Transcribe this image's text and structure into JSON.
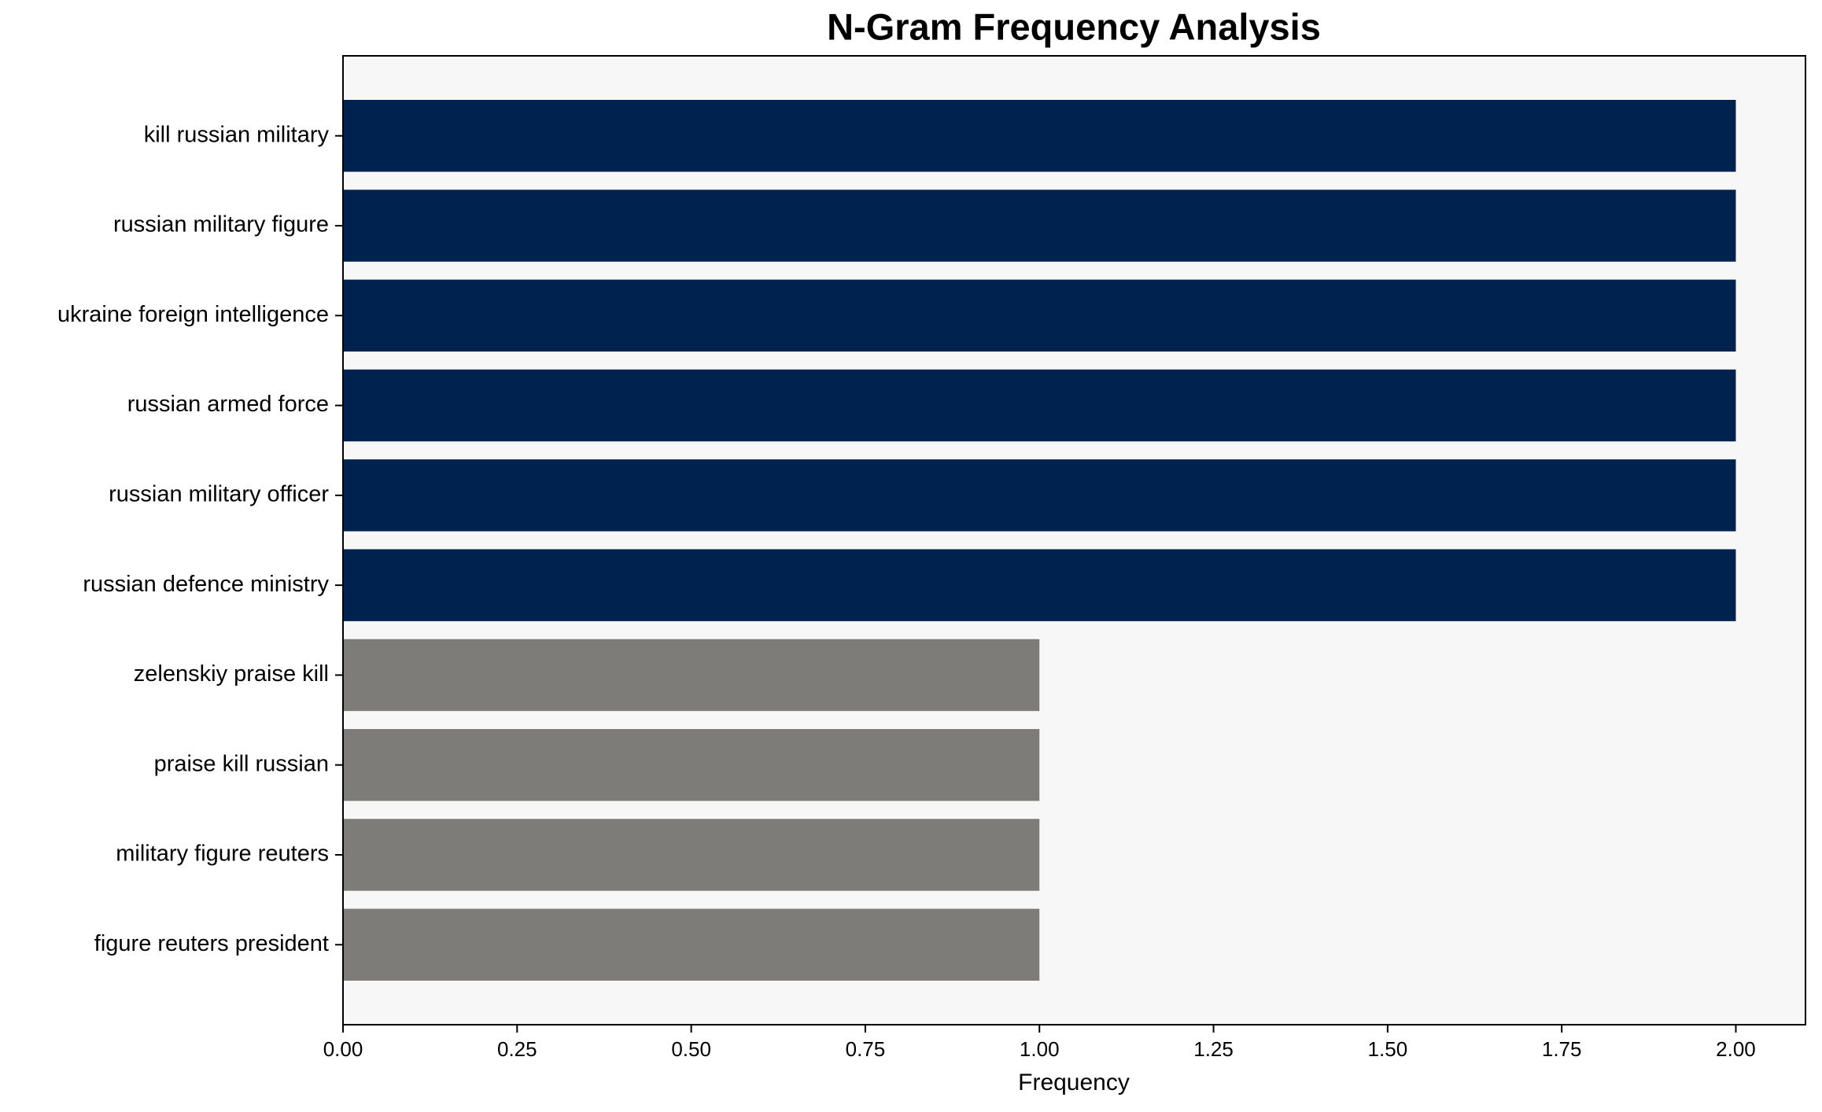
{
  "chart_data": {
    "type": "barh",
    "title": "N-Gram Frequency Analysis",
    "xlabel": "Frequency",
    "categories": [
      "kill russian military",
      "russian military figure",
      "ukraine foreign intelligence",
      "russian armed force",
      "russian military officer",
      "russian defence ministry",
      "zelenskiy praise kill",
      "praise kill russian",
      "military figure reuters",
      "figure reuters president"
    ],
    "values": [
      2,
      2,
      2,
      2,
      2,
      2,
      1,
      1,
      1,
      1
    ],
    "colors": [
      "#00224e",
      "#00224e",
      "#00224e",
      "#00224e",
      "#00224e",
      "#00224e",
      "#7d7c78",
      "#7d7c78",
      "#7d7c78",
      "#7d7c78"
    ],
    "xlim": [
      0,
      2.1
    ],
    "xticks": [
      {
        "value": 0,
        "label": "0.00"
      },
      {
        "value": 0.25,
        "label": "0.25"
      },
      {
        "value": 0.5,
        "label": "0.50"
      },
      {
        "value": 0.75,
        "label": "0.75"
      },
      {
        "value": 1,
        "label": "1.00"
      },
      {
        "value": 1.25,
        "label": "1.25"
      },
      {
        "value": 1.5,
        "label": "1.50"
      },
      {
        "value": 1.75,
        "label": "1.75"
      },
      {
        "value": 2,
        "label": "2.00"
      }
    ],
    "background": "#f7f7f7",
    "grid": false
  }
}
